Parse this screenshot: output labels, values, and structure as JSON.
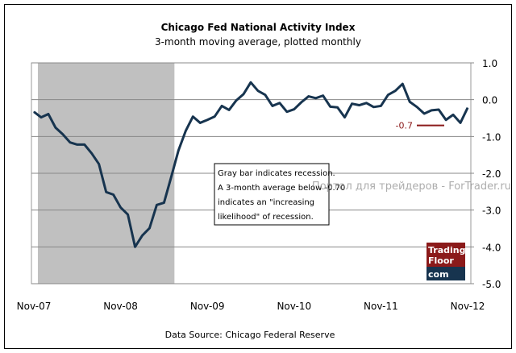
{
  "chart_data": {
    "type": "line",
    "title": "Chicago Fed National Activity Index",
    "subtitle": "3-month moving average, plotted monthly",
    "source": "Data Source: Chicago Federal Reserve",
    "x_start": "Nov-07",
    "x_end": "Nov-12",
    "x_tick_labels": [
      "Nov-07",
      "Nov-08",
      "Nov-09",
      "Nov-10",
      "Nov-11",
      "Nov-12"
    ],
    "y_tick_labels": [
      "1.0",
      "0.0",
      "-1.0",
      "-2.0",
      "-3.0",
      "-4.0",
      "-5.0"
    ],
    "ylim": [
      -5,
      1
    ],
    "y_axis_position": "right",
    "grid": true,
    "series": [
      {
        "color": "#17344f",
        "values": [
          -0.33,
          -0.48,
          -0.39,
          -0.76,
          -0.94,
          -1.16,
          -1.22,
          -1.22,
          -1.46,
          -1.75,
          -2.51,
          -2.58,
          -2.93,
          -3.12,
          -4.0,
          -3.69,
          -3.49,
          -2.86,
          -2.8,
          -2.1,
          -1.38,
          -0.85,
          -0.46,
          -0.63,
          -0.55,
          -0.46,
          -0.17,
          -0.28,
          -0.02,
          0.15,
          0.47,
          0.24,
          0.13,
          -0.17,
          -0.09,
          -0.33,
          -0.26,
          -0.07,
          0.09,
          0.04,
          0.11,
          -0.19,
          -0.21,
          -0.48,
          -0.11,
          -0.15,
          -0.09,
          -0.2,
          -0.17,
          0.13,
          0.24,
          0.43,
          -0.06,
          -0.2,
          -0.38,
          -0.29,
          -0.27,
          -0.55,
          -0.41,
          -0.63,
          -0.22
        ]
      }
    ],
    "recession_shading": {
      "start": "Dec-07",
      "end": "Jun-09",
      "color": "#c0c0c0"
    },
    "threshold": {
      "value": -0.7,
      "label": "-0.7",
      "color": "#8b1a1a"
    },
    "annotation": [
      "Gray bar indicates recession.",
      "A 3-month average below -0.70",
      "indicates an \"increasing",
      "likelihood\" of recession."
    ]
  },
  "watermark": "Портал для трейдеров - ForTrader.ru",
  "logo": {
    "line1": "Trading",
    "line2": "Floor",
    "line3": "com",
    "top_color": "#8b1a1a",
    "bottom_color": "#17344f"
  }
}
